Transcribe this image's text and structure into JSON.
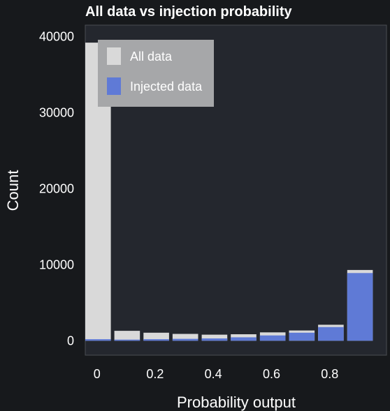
{
  "chart_data": {
    "type": "bar",
    "title": "All data vs injection probability",
    "xlabel": "Probability output",
    "ylabel": "Count",
    "x_bin_starts": [
      0,
      0.1,
      0.2,
      0.3,
      0.4,
      0.5,
      0.6,
      0.7,
      0.8,
      0.9
    ],
    "bin_width": 0.1,
    "x_ticks": [
      0,
      0.2,
      0.4,
      0.6,
      0.8
    ],
    "x_tick_labels": [
      "0",
      "0.2",
      "0.4",
      "0.6",
      "0.8"
    ],
    "y_ticks": [
      0,
      10000,
      20000,
      30000,
      40000
    ],
    "y_tick_labels": [
      "0",
      "10000",
      "20000",
      "30000",
      "40000"
    ],
    "xlim": [
      -0.04,
      0.995
    ],
    "ylim": [
      -1900,
      41500
    ],
    "series": [
      {
        "name": "All data",
        "color": "#d9d9d9",
        "values": [
          39200,
          1300,
          1050,
          900,
          800,
          850,
          1100,
          1350,
          2100,
          9300
        ]
      },
      {
        "name": "Injected data",
        "color": "#5f7ad6",
        "values": [
          200,
          150,
          200,
          250,
          300,
          450,
          700,
          1050,
          1800,
          8900
        ]
      }
    ],
    "legend": {
      "placement": "top-left",
      "background": "#a6a7a9"
    },
    "grid": false,
    "plot_background": "#24272e",
    "page_background": "#17191c"
  }
}
